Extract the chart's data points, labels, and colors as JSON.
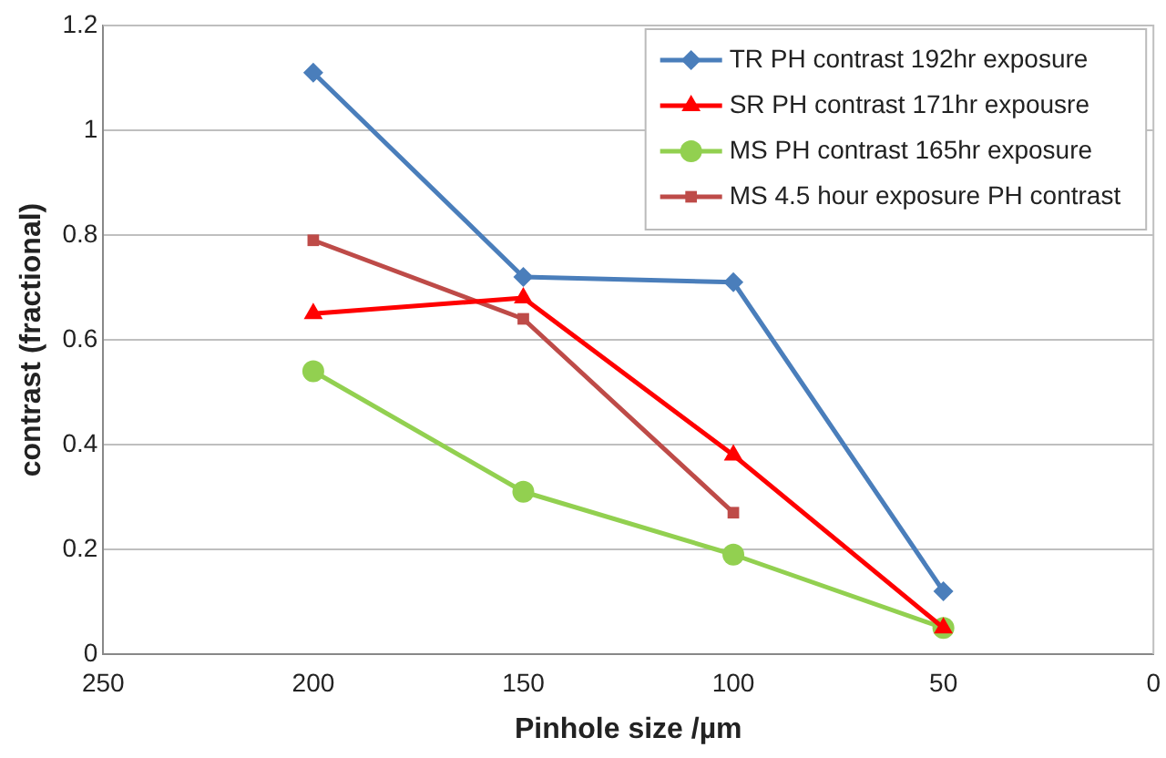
{
  "chart_data": {
    "type": "line",
    "xlabel": "Pinhole size /µm",
    "ylabel": "contrast (fractional)",
    "xlim": [
      250,
      0
    ],
    "xticks": [
      250,
      200,
      150,
      100,
      50,
      0
    ],
    "ylim": [
      0,
      1.2
    ],
    "yticks": [
      0,
      0.2,
      0.4,
      0.6,
      0.8,
      1,
      1.2
    ],
    "grid": "y",
    "legend": "top right",
    "series": [
      {
        "name": "TR PH contrast 192hr exposure",
        "color": "#4a7ebb",
        "marker": "diamond",
        "x": [
          200,
          150,
          100,
          50
        ],
        "values": [
          1.11,
          0.72,
          0.71,
          0.12
        ]
      },
      {
        "name": "SR PH contrast 171hr expousre",
        "color": "#ff0000",
        "marker": "triangle",
        "x": [
          200,
          150,
          100,
          50
        ],
        "values": [
          0.65,
          0.68,
          0.38,
          0.05
        ]
      },
      {
        "name": "MS PH contrast 165hr exposure",
        "color": "#92d050",
        "marker": "circle",
        "x": [
          200,
          150,
          100,
          50
        ],
        "values": [
          0.54,
          0.31,
          0.19,
          0.05
        ]
      },
      {
        "name": "MS 4.5 hour exposure PH contrast",
        "color": "#be4b48",
        "marker": "square",
        "x": [
          200,
          150,
          100
        ],
        "values": [
          0.79,
          0.64,
          0.27
        ]
      }
    ]
  }
}
